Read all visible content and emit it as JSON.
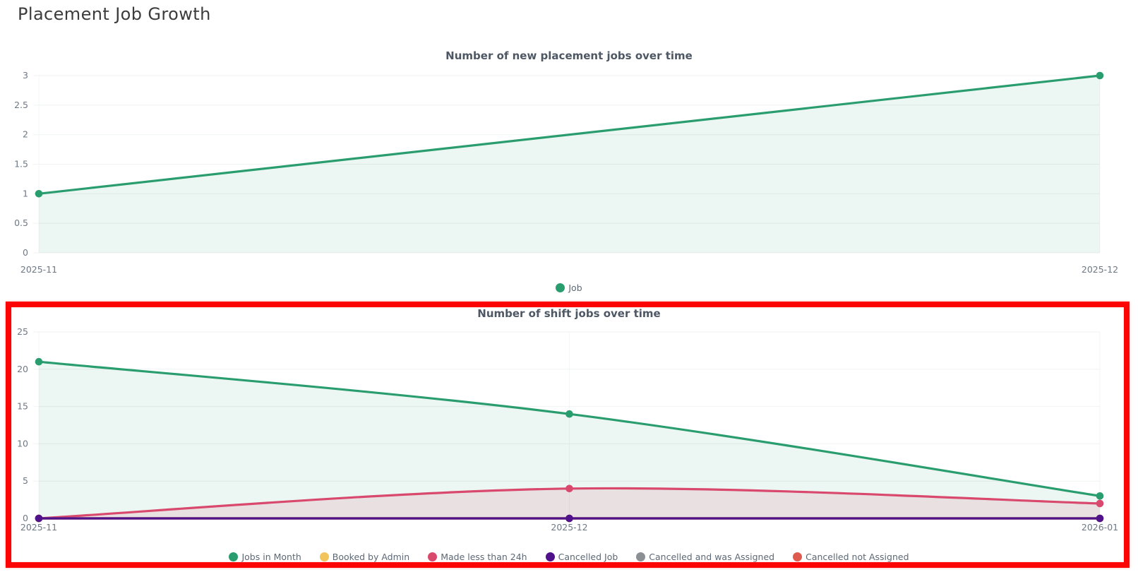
{
  "page": {
    "title": "Placement Job Growth"
  },
  "annotation": {
    "type": "highlight-box",
    "color": "#fd0404"
  },
  "chart_data": [
    {
      "type": "area",
      "title": "Number of new placement jobs over time",
      "categories": [
        "2025-11",
        "2025-12"
      ],
      "series": [
        {
          "name": "Job",
          "color": "#2a9d6f",
          "fill_opacity": 0.09,
          "values": [
            1,
            3
          ]
        }
      ],
      "y_ticks": [
        0,
        0.5,
        1,
        1.5,
        2,
        2.5,
        3
      ],
      "ylim": [
        0,
        3
      ],
      "grid": true,
      "legend_position": "bottom",
      "legend": [
        {
          "label": "Job",
          "color": "#2a9d6f"
        }
      ]
    },
    {
      "type": "area",
      "title": "Number of shift jobs over time",
      "categories": [
        "2025-11",
        "2025-12",
        "2026-01"
      ],
      "series": [
        {
          "name": "Jobs in Month",
          "color": "#2a9d6f",
          "fill_opacity": 0.09,
          "values": [
            21,
            14,
            3
          ]
        },
        {
          "name": "Booked by Admin",
          "color": "#f2c55c",
          "values": [
            0,
            0,
            0
          ]
        },
        {
          "name": "Made less than 24h",
          "color": "#d9486d",
          "fill_opacity": 0.12,
          "values": [
            0,
            4,
            2
          ]
        },
        {
          "name": "Cancelled and was Assigned",
          "color": "#8b9095",
          "values": [
            0,
            0,
            0
          ]
        },
        {
          "name": "Cancelled not Assigned",
          "color": "#df5a4e",
          "values": [
            0,
            0,
            0
          ]
        },
        {
          "name": "Cancelled Job",
          "color": "#50128a",
          "values": [
            0,
            0,
            0
          ]
        }
      ],
      "y_ticks": [
        0,
        5,
        10,
        15,
        20,
        25
      ],
      "ylim": [
        0,
        25
      ],
      "grid": true,
      "legend_position": "bottom",
      "highlighted": true,
      "legend": [
        {
          "label": "Jobs in Month",
          "color": "#2a9d6f"
        },
        {
          "label": "Booked by Admin",
          "color": "#f2c55c"
        },
        {
          "label": "Made less than 24h",
          "color": "#d9486d"
        },
        {
          "label": "Cancelled Job",
          "color": "#50128a"
        },
        {
          "label": "Cancelled and was Assigned",
          "color": "#8b9095"
        },
        {
          "label": "Cancelled not Assigned",
          "color": "#df5a4e"
        }
      ]
    }
  ]
}
